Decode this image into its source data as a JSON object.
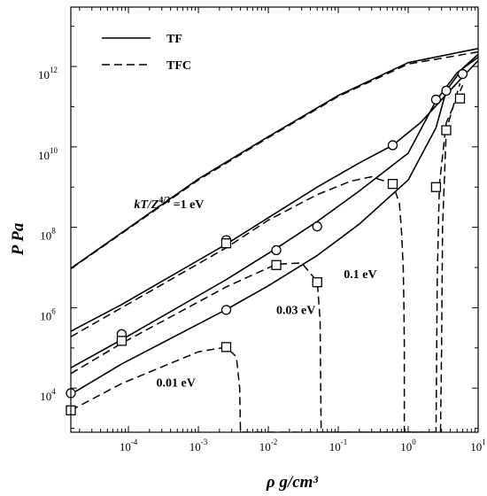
{
  "chart_data": {
    "type": "line",
    "title": "",
    "xlabel": "ρ  g/cm³",
    "ylabel": "P  Pa",
    "xscale": "log",
    "yscale": "log",
    "xlim": [
      1.5e-05,
      10
    ],
    "ylim": [
      800,
      30000000000000.0
    ],
    "x_ticks": [
      {
        "base": "10",
        "exp": "-4",
        "value": 0.0001
      },
      {
        "base": "10",
        "exp": "-3",
        "value": 0.001
      },
      {
        "base": "10",
        "exp": "-2",
        "value": 0.01
      },
      {
        "base": "10",
        "exp": "-1",
        "value": 0.1
      },
      {
        "base": "10",
        "exp": "0",
        "value": 1
      },
      {
        "base": "10",
        "exp": "1",
        "value": 10
      }
    ],
    "y_ticks": [
      {
        "base": "10",
        "exp": "4",
        "value": 10000.0
      },
      {
        "base": "10",
        "exp": "6",
        "value": 1000000.0
      },
      {
        "base": "10",
        "exp": "8",
        "value": 100000000.0
      },
      {
        "base": "10",
        "exp": "10",
        "value": 10000000000.0
      },
      {
        "base": "10",
        "exp": "12",
        "value": 1000000000000.0
      }
    ],
    "legend": {
      "placement": "top-left",
      "entries": [
        {
          "label": "TF",
          "style": "solid"
        },
        {
          "label": "TFC",
          "style": "dashed"
        }
      ]
    },
    "series": [
      {
        "name": "TF",
        "temperature": "1 eV",
        "style": "solid",
        "points": [
          [
            1.5e-05,
            9500000.0
          ],
          [
            0.001,
            1600000000.0
          ],
          [
            0.01,
            18000000000.0
          ],
          [
            0.1,
            190000000000.0
          ],
          [
            1,
            1250000000000.0
          ],
          [
            10,
            2800000000000.0
          ]
        ]
      },
      {
        "name": "TFC",
        "temperature": "1 eV",
        "style": "dashed",
        "points": [
          [
            1.5e-05,
            9300000.0
          ],
          [
            0.001,
            1500000000.0
          ],
          [
            0.01,
            17000000000.0
          ],
          [
            0.1,
            180000000000.0
          ],
          [
            1,
            1150000000000.0
          ],
          [
            10,
            2300000000000.0
          ]
        ]
      },
      {
        "name": "TF",
        "temperature": "0.1 eV",
        "style": "solid",
        "points": [
          [
            1.5e-05,
            260000.0
          ],
          [
            8e-05,
            1200000.0
          ],
          [
            0.0025,
            38000000.0
          ],
          [
            0.013,
            230000000.0
          ],
          [
            0.05,
            1000000000.0
          ],
          [
            0.2,
            4000000000.0
          ],
          [
            0.6,
            11000000000.0
          ],
          [
            1.5,
            40000000000.0
          ],
          [
            3.5,
            200000000000.0
          ],
          [
            6,
            550000000000.0
          ],
          [
            10,
            1400000000000.0
          ]
        ]
      },
      {
        "name": "TFC",
        "temperature": "0.1 eV",
        "style": "dashed",
        "points": [
          [
            1.5e-05,
            190000.0
          ],
          [
            8e-05,
            1000000.0
          ],
          [
            0.0025,
            31000000.0
          ],
          [
            0.01,
            150000000.0
          ],
          [
            0.05,
            650000000.0
          ],
          [
            0.15,
            1400000000.0
          ],
          [
            0.3,
            1800000000.0
          ],
          [
            0.6,
            1200000000.0
          ],
          [
            0.75,
            400000000.0
          ],
          [
            0.8,
            80000000.0
          ],
          [
            0.85,
            10000000.0
          ],
          [
            0.87,
            1000000.0
          ],
          [
            0.88,
            120000.0
          ],
          [
            0.88,
            800
          ]
        ]
      },
      {
        "name": "TF",
        "temperature": "0.03 eV",
        "style": "solid",
        "points": [
          [
            1.5e-05,
            32000.0
          ],
          [
            8e-05,
            160000.0
          ],
          [
            0.0025,
            5000000.0
          ],
          [
            0.013,
            30000000.0
          ],
          [
            0.05,
            140000000.0
          ],
          [
            0.2,
            800000000.0
          ],
          [
            1,
            7000000000.0
          ],
          [
            2.5,
            140000000000.0
          ],
          [
            5,
            700000000000.0
          ],
          [
            10,
            1700000000000.0
          ]
        ]
      },
      {
        "name": "TFC",
        "temperature": "0.03 eV",
        "style": "dashed",
        "points": [
          [
            1.5e-05,
            23000.0
          ],
          [
            8e-05,
            130000.0
          ],
          [
            0.0025,
            3300000.0
          ],
          [
            0.013,
            12000000.0
          ],
          [
            0.03,
            13000000.0
          ],
          [
            0.05,
            4500000.0
          ],
          [
            0.055,
            500000.0
          ],
          [
            0.057,
            800
          ],
          [
            2.5,
            800
          ],
          [
            2.55,
            50000.0
          ],
          [
            2.6,
            5000000.0
          ],
          [
            2.7,
            100000000.0
          ],
          [
            2.8,
            1200000000.0
          ],
          [
            3.5,
            40000000000.0
          ],
          [
            6,
            340000000000.0
          ]
        ]
      },
      {
        "name": "TF",
        "temperature": "0.01 eV",
        "style": "solid",
        "points": [
          [
            1.5e-05,
            7000.0
          ],
          [
            8e-05,
            40000.0
          ],
          [
            0.0025,
            900000.0
          ],
          [
            0.01,
            3500000.0
          ],
          [
            0.05,
            20000000.0
          ],
          [
            0.2,
            120000000.0
          ],
          [
            1,
            1500000000.0
          ],
          [
            2.5,
            30000000000.0
          ],
          [
            3.5,
            250000000000.0
          ],
          [
            6,
            900000000000.0
          ],
          [
            10,
            2000000000000.0
          ]
        ]
      },
      {
        "name": "TFC",
        "temperature": "0.01 eV",
        "style": "dashed",
        "points": [
          [
            1.5e-05,
            2800.0
          ],
          [
            8e-05,
            13000.0
          ],
          [
            0.001,
            80000.0
          ],
          [
            0.0025,
            105000.0
          ],
          [
            0.0035,
            60000.0
          ],
          [
            0.0039,
            10000.0
          ],
          [
            0.004,
            800
          ],
          [
            2.9,
            800
          ],
          [
            3.0,
            100000.0
          ],
          [
            3.1,
            100000000.0
          ],
          [
            3.5,
            26000000000.0
          ],
          [
            5.5,
            380000000000.0
          ]
        ]
      }
    ],
    "markers": [
      {
        "symbol": "circle",
        "points": [
          [
            1.5e-05,
            7500.0
          ],
          [
            8e-05,
            220000.0
          ],
          [
            0.0025,
            48000000.0
          ],
          [
            0.0025,
            880000.0
          ],
          [
            0.013,
            27000000.0
          ],
          [
            0.05,
            105000000.0
          ],
          [
            0.6,
            11000000000.0
          ],
          [
            2.5,
            150000000000.0
          ],
          [
            3.5,
            250000000000.0
          ],
          [
            6,
            650000000000.0
          ]
        ]
      },
      {
        "symbol": "square",
        "points": [
          [
            1.5e-05,
            2800.0
          ],
          [
            8e-05,
            150000.0
          ],
          [
            0.0025,
            40000000.0
          ],
          [
            0.0025,
            105000.0
          ],
          [
            0.013,
            11500000.0
          ],
          [
            0.05,
            4300000.0
          ],
          [
            0.6,
            1200000000.0
          ],
          [
            2.5,
            1000000000.0
          ],
          [
            3.5,
            26000000000.0
          ],
          [
            5.5,
            160000000000.0
          ]
        ]
      }
    ],
    "annotations": [
      {
        "text": "kT/Z",
        "sup": "4/3",
        "rest": " =1 eV",
        "x": 0.00012,
        "y": 300000000.0
      },
      {
        "text": "0.1 eV",
        "x": 0.12,
        "y": 5500000.0
      },
      {
        "text": "0.03 eV",
        "x": 0.013,
        "y": 700000.0
      },
      {
        "text": "0.01 eV",
        "x": 0.00025,
        "y": 11000.0
      }
    ]
  }
}
